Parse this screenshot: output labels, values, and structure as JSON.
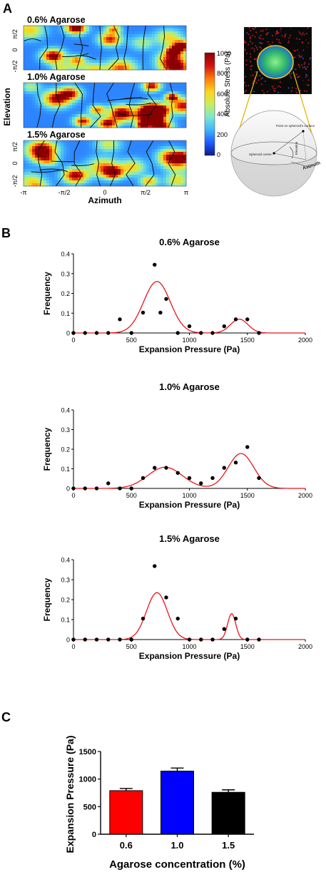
{
  "panels": {
    "a": "A",
    "b": "B",
    "c": "C"
  },
  "panel_a": {
    "maps": [
      {
        "title": "0.6% Agarose",
        "seed": 3,
        "hot": 0.55
      },
      {
        "title": "1.0% Agarose",
        "seed": 11,
        "hot": 0.85
      },
      {
        "title": "1.5% Agarose",
        "seed": 23,
        "hot": 0.5
      }
    ],
    "y_ticks": [
      "π/2",
      "0",
      "-π/2"
    ],
    "x_ticks": [
      "-π",
      "-π/2",
      "0",
      "π/2",
      "π"
    ],
    "xlabel": "Azimuth",
    "ylabel": "Elevation",
    "colorbar": {
      "label": "Absolute Stress (Pa)",
      "ticks": [
        "1000",
        "800",
        "600",
        "400",
        "200",
        "0"
      ],
      "colors": [
        "#0a1a8c",
        "#1e5cff",
        "#3fb6ff",
        "#7ee6d0",
        "#c9ee5a",
        "#ffd21c",
        "#ff7a0a",
        "#d21010",
        "#8a0000"
      ]
    },
    "schematic": {
      "surface_label": "Point on spheroid's surface",
      "centre_label": "Spheroid centre",
      "elevation_label": "Elevation",
      "azimuth_label": "Azimuth"
    }
  },
  "chart_data": [
    {
      "type": "scatter",
      "title": "0.6% Agarose",
      "xlabel": "Expansion Pressure (Pa)",
      "ylabel": "Frequency",
      "xlim": [
        0,
        2000
      ],
      "ylim": [
        0,
        0.4
      ],
      "x_ticks": [
        0,
        500,
        1000,
        1500,
        2000
      ],
      "y_ticks": [
        0,
        0.1,
        0.2,
        0.3,
        0.4
      ],
      "points": {
        "x": [
          0,
          100,
          200,
          300,
          400,
          500,
          600,
          700,
          750,
          800,
          900,
          1000,
          1100,
          1200,
          1300,
          1400,
          1500,
          1600
        ],
        "y": [
          0,
          0,
          0,
          0,
          0.069,
          0,
          0.103,
          0.345,
          0.103,
          0.172,
          0,
          0.034,
          0,
          0,
          0.034,
          0.069,
          0.069,
          0
        ]
      },
      "fit": {
        "color": "#e8141c",
        "components": [
          {
            "a": 0.26,
            "mu": 720,
            "sigma": 115
          },
          {
            "a": 0.07,
            "mu": 1430,
            "sigma": 75
          }
        ]
      }
    },
    {
      "type": "scatter",
      "title": "1.0% Agarose",
      "xlabel": "Expansion Pressure (Pa)",
      "ylabel": "Frequency",
      "xlim": [
        0,
        2000
      ],
      "ylim": [
        0,
        0.4
      ],
      "x_ticks": [
        0,
        500,
        1000,
        1500,
        2000
      ],
      "y_ticks": [
        0,
        0.1,
        0.2,
        0.3,
        0.4
      ],
      "points": {
        "x": [
          0,
          100,
          200,
          300,
          400,
          500,
          600,
          700,
          800,
          900,
          1000,
          1100,
          1200,
          1300,
          1400,
          1500,
          1600
        ],
        "y": [
          0,
          0,
          0,
          0.026,
          0,
          0,
          0.053,
          0.105,
          0.105,
          0.079,
          0.053,
          0.026,
          0.053,
          0.105,
          0.132,
          0.211,
          0.053
        ]
      },
      "fit": {
        "color": "#e8141c",
        "components": [
          {
            "a": 0.108,
            "mu": 790,
            "sigma": 150
          },
          {
            "a": 0.178,
            "mu": 1445,
            "sigma": 110
          }
        ]
      }
    },
    {
      "type": "scatter",
      "title": "1.5% Agarose",
      "xlabel": "Expansion Pressure (Pa)",
      "ylabel": "Frequency",
      "xlim": [
        0,
        2000
      ],
      "ylim": [
        0,
        0.4
      ],
      "x_ticks": [
        0,
        500,
        1000,
        1500,
        2000
      ],
      "y_ticks": [
        0,
        0.1,
        0.2,
        0.3,
        0.4
      ],
      "points": {
        "x": [
          0,
          100,
          200,
          300,
          400,
          500,
          600,
          700,
          800,
          900,
          1000,
          1100,
          1200,
          1300,
          1400,
          1500,
          1600
        ],
        "y": [
          0,
          0,
          0,
          0,
          0,
          0,
          0.105,
          0.368,
          0.211,
          0.105,
          0,
          0,
          0,
          0.053,
          0.105,
          0,
          0
        ]
      },
      "fit": {
        "color": "#e8141c",
        "components": [
          {
            "a": 0.235,
            "mu": 720,
            "sigma": 90
          },
          {
            "a": 0.13,
            "mu": 1365,
            "sigma": 35
          }
        ]
      }
    },
    {
      "type": "bar",
      "categories": [
        "0.6",
        "1.0",
        "1.5"
      ],
      "values": [
        790,
        1145,
        760
      ],
      "errors": [
        40,
        55,
        45
      ],
      "colors": [
        "#ff0000",
        "#0000ff",
        "#000000"
      ],
      "xlabel": "Agarose concentration (%)",
      "ylabel": "Expansion Pressure (Pa)",
      "ylim": [
        0,
        1500
      ],
      "y_ticks": [
        0,
        500,
        1000,
        1500
      ]
    }
  ]
}
